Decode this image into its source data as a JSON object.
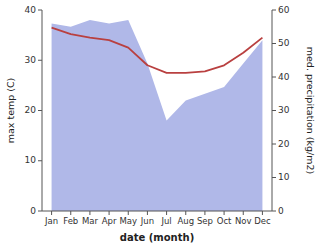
{
  "chart_data": {
    "type": "line",
    "xlabel": "date (month)",
    "ylabel": "max temp (C)",
    "y2label": "med. precipitation (kg/m2)",
    "categories": [
      "Jan",
      "Feb",
      "Mar",
      "Apr",
      "May",
      "Jun",
      "Jul",
      "Aug",
      "Sep",
      "Oct",
      "Nov",
      "Dec"
    ],
    "series": [
      {
        "type": "area",
        "axis": "y2",
        "color": "#b0b8e8",
        "values": [
          56,
          55,
          57,
          56,
          57,
          44,
          27,
          33,
          35,
          37,
          44,
          51
        ]
      },
      {
        "type": "line",
        "color": "#b94040",
        "values": [
          36.5,
          35.2,
          34.5,
          34.0,
          32.5,
          29.0,
          27.5,
          27.5,
          27.8,
          29.0,
          31.5,
          34.5
        ]
      }
    ],
    "ylim": [
      0,
      40
    ],
    "yticks": [
      0,
      10,
      20,
      30,
      40
    ],
    "y2lim": [
      0,
      60
    ],
    "y2ticks": [
      0,
      10,
      20,
      30,
      40,
      50,
      60
    ],
    "grid": false
  }
}
